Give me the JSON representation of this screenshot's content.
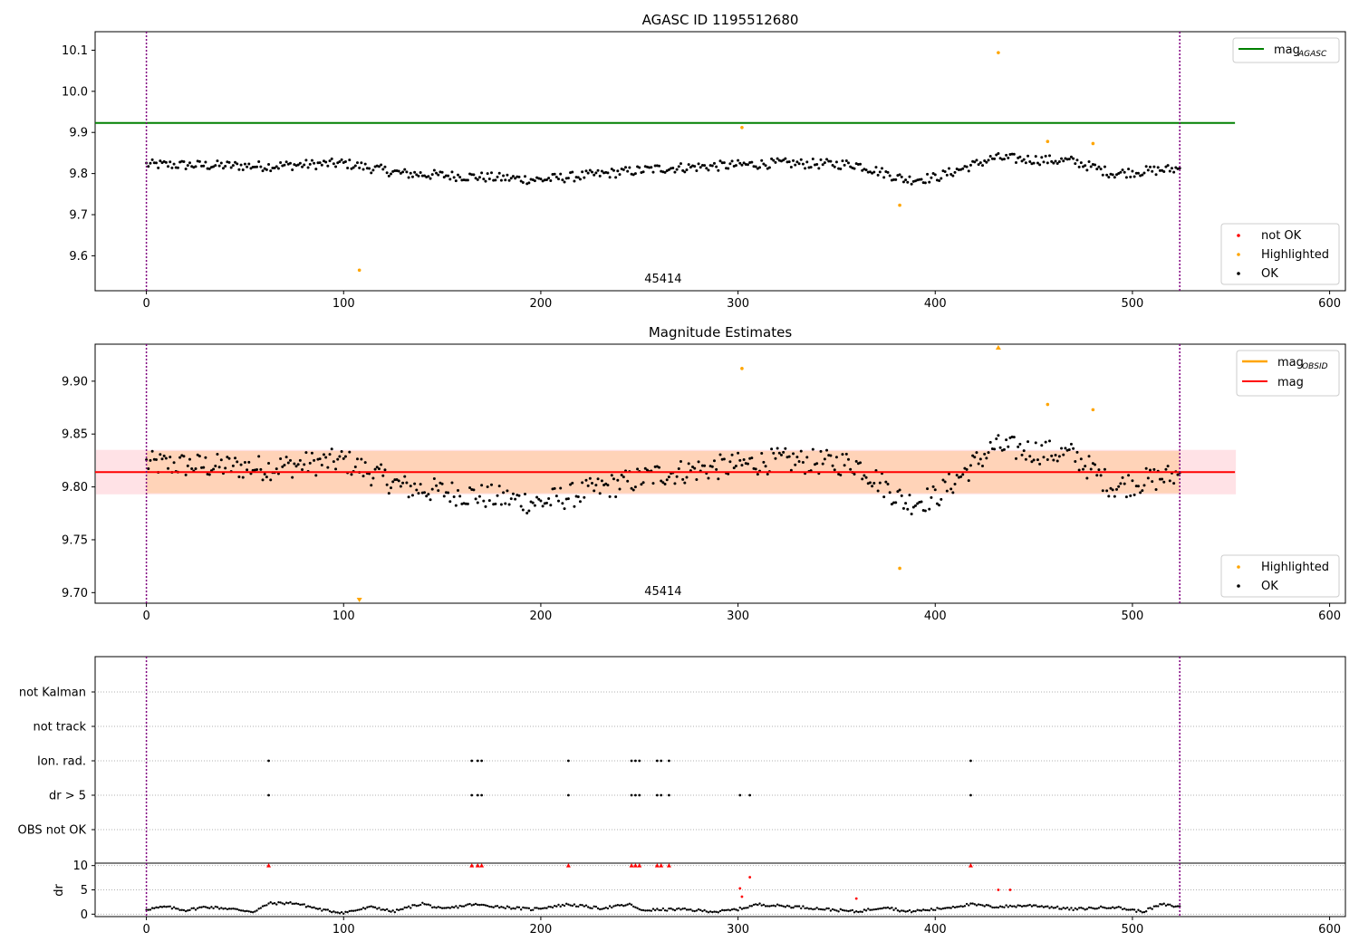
{
  "colors": {
    "ok": "#000000",
    "not_ok": "#ff0000",
    "highlighted": "#ffa500",
    "mag_agasc": "#008000",
    "mag": "#ff0000",
    "mag_obsid": "#ffa500",
    "band_inner": "#ffd3b8",
    "band_outer": "#ffe2e6",
    "obs_boundary": "#800080",
    "grid": "#b0b0b0"
  },
  "chart_data": [
    {
      "type": "scatter",
      "title": "AGASC ID 1195512680",
      "xlim": [
        -26,
        608
      ],
      "ylim": [
        9.515,
        10.145
      ],
      "xticks": [
        0,
        100,
        200,
        300,
        400,
        500,
        600
      ],
      "yticks": [
        9.6,
        9.7,
        9.8,
        9.9,
        10.0,
        10.1
      ],
      "ytick_labels": [
        "9.6",
        "9.7",
        "9.8",
        "9.9",
        "10.0",
        "10.1"
      ],
      "obs_boundaries": [
        0,
        524
      ],
      "obsid_label": "45414",
      "mag_agasc": {
        "value": 9.923,
        "x_range": [
          -26,
          552
        ]
      },
      "ok_baseline": {
        "x_range": [
          0,
          524
        ],
        "anchors": [
          [
            0,
            9.822
          ],
          [
            60,
            9.818
          ],
          [
            100,
            9.825
          ],
          [
            130,
            9.8
          ],
          [
            200,
            9.785
          ],
          [
            260,
            9.812
          ],
          [
            320,
            9.825
          ],
          [
            360,
            9.822
          ],
          [
            385,
            9.785
          ],
          [
            400,
            9.79
          ],
          [
            430,
            9.838
          ],
          [
            470,
            9.83
          ],
          [
            490,
            9.8
          ],
          [
            524,
            9.812
          ]
        ],
        "scatter": 0.012
      },
      "series": [
        {
          "name": "not OK",
          "points": []
        },
        {
          "name": "Highlighted",
          "points": [
            [
              108,
              9.565
            ],
            [
              302,
              9.912
            ],
            [
              382,
              9.723
            ],
            [
              432,
              10.094
            ],
            [
              457,
              9.878
            ],
            [
              480,
              9.873
            ]
          ]
        },
        {
          "name": "OK",
          "points": []
        }
      ],
      "legend_top": {
        "position": "upper right",
        "entries": [
          {
            "text": "mag",
            "subscript": "AGASC"
          }
        ]
      },
      "legend_bottom": {
        "position": "lower right",
        "entries": [
          "not OK",
          "Highlighted",
          "OK"
        ]
      }
    },
    {
      "type": "scatter",
      "title": "Magnitude Estimates",
      "xlim": [
        -26,
        608
      ],
      "ylim": [
        9.69,
        9.935
      ],
      "xticks": [
        0,
        100,
        200,
        300,
        400,
        500,
        600
      ],
      "yticks": [
        9.7,
        9.75,
        9.8,
        9.85,
        9.9
      ],
      "ytick_labels": [
        "9.70",
        "9.75",
        "9.80",
        "9.85",
        "9.90"
      ],
      "obs_boundaries": [
        0,
        524
      ],
      "obsid_label": "45414",
      "mag": {
        "value": 9.814,
        "x_range": [
          -26,
          552
        ]
      },
      "band_outer": [
        9.793,
        9.835
      ],
      "band_inner": [
        9.794,
        9.834
      ],
      "band_inner_x": [
        0,
        524
      ],
      "series": [
        {
          "name": "Highlighted",
          "points": [
            [
              302,
              9.912
            ],
            [
              382,
              9.723
            ],
            [
              457,
              9.878
            ],
            [
              480,
              9.873
            ]
          ],
          "clipped": [
            [
              108,
              "low"
            ],
            [
              432,
              "high"
            ]
          ]
        },
        {
          "name": "OK",
          "points": []
        }
      ],
      "legend_top": {
        "position": "upper right",
        "entries": [
          {
            "text": "mag",
            "subscript": "OBSID"
          },
          {
            "text": "mag",
            "subscript": ""
          }
        ]
      },
      "legend_bottom": {
        "position": "lower right",
        "entries": [
          "Highlighted",
          "OK"
        ]
      }
    },
    {
      "type": "scatter",
      "title": "",
      "xlim": [
        -26,
        608
      ],
      "xticks": [
        0,
        100,
        200,
        300,
        400,
        500,
        600
      ],
      "flag_rows": [
        "not Kalman",
        "not track",
        "Ion. rad.",
        "dr > 5",
        "OBS not OK"
      ],
      "flag_points": {
        "not Kalman": [],
        "not track": [],
        "Ion. rad.": [
          62,
          165,
          168,
          170,
          214,
          246,
          248,
          250,
          259,
          261,
          265,
          418
        ],
        "dr > 5": [
          62,
          165,
          168,
          170,
          214,
          246,
          248,
          250,
          259,
          261,
          265,
          301,
          306,
          418
        ],
        "OBS not OK": []
      },
      "obs_boundaries": [
        0,
        524
      ],
      "dr": {
        "ylabel": "dr",
        "ylim": [
          -0.5,
          10.5
        ],
        "yticks": [
          0,
          5,
          10
        ],
        "ytick_labels": [
          "0",
          "5",
          "10"
        ],
        "ok_profile": [
          [
            0,
            1.0
          ],
          [
            10,
            1.5
          ],
          [
            20,
            0.8
          ],
          [
            30,
            1.5
          ],
          [
            40,
            1.2
          ],
          [
            55,
            0.5
          ],
          [
            62,
            2.2
          ],
          [
            75,
            2.3
          ],
          [
            90,
            0.8
          ],
          [
            100,
            0.3
          ],
          [
            115,
            1.5
          ],
          [
            125,
            0.5
          ],
          [
            140,
            2.2
          ],
          [
            150,
            1.0
          ],
          [
            165,
            2.0
          ],
          [
            180,
            1.5
          ],
          [
            195,
            1.0
          ],
          [
            214,
            2.0
          ],
          [
            230,
            1.2
          ],
          [
            246,
            2.0
          ],
          [
            250,
            0.8
          ],
          [
            270,
            1.0
          ],
          [
            290,
            0.5
          ],
          [
            300,
            1.0
          ],
          [
            310,
            2.0
          ],
          [
            330,
            1.5
          ],
          [
            345,
            1.0
          ],
          [
            360,
            0.5
          ],
          [
            375,
            1.5
          ],
          [
            385,
            0.5
          ],
          [
            400,
            1.0
          ],
          [
            418,
            2.0
          ],
          [
            430,
            1.5
          ],
          [
            450,
            1.8
          ],
          [
            470,
            1.0
          ],
          [
            490,
            1.5
          ],
          [
            505,
            0.5
          ],
          [
            515,
            2.0
          ],
          [
            524,
            1.5
          ]
        ],
        "red_points": [
          [
            62,
            10.0
          ],
          [
            165,
            10.0
          ],
          [
            168,
            10.0
          ],
          [
            170,
            10.0
          ],
          [
            214,
            10.0
          ],
          [
            246,
            10.0
          ],
          [
            248,
            10.0
          ],
          [
            250,
            10.0
          ],
          [
            259,
            10.0
          ],
          [
            261,
            10.0
          ],
          [
            265,
            10.0
          ],
          [
            418,
            10.0
          ],
          [
            301,
            5.3
          ],
          [
            302,
            3.6
          ],
          [
            306,
            7.6
          ],
          [
            360,
            3.2
          ],
          [
            432,
            5.0
          ],
          [
            438,
            5.0
          ]
        ]
      }
    }
  ]
}
